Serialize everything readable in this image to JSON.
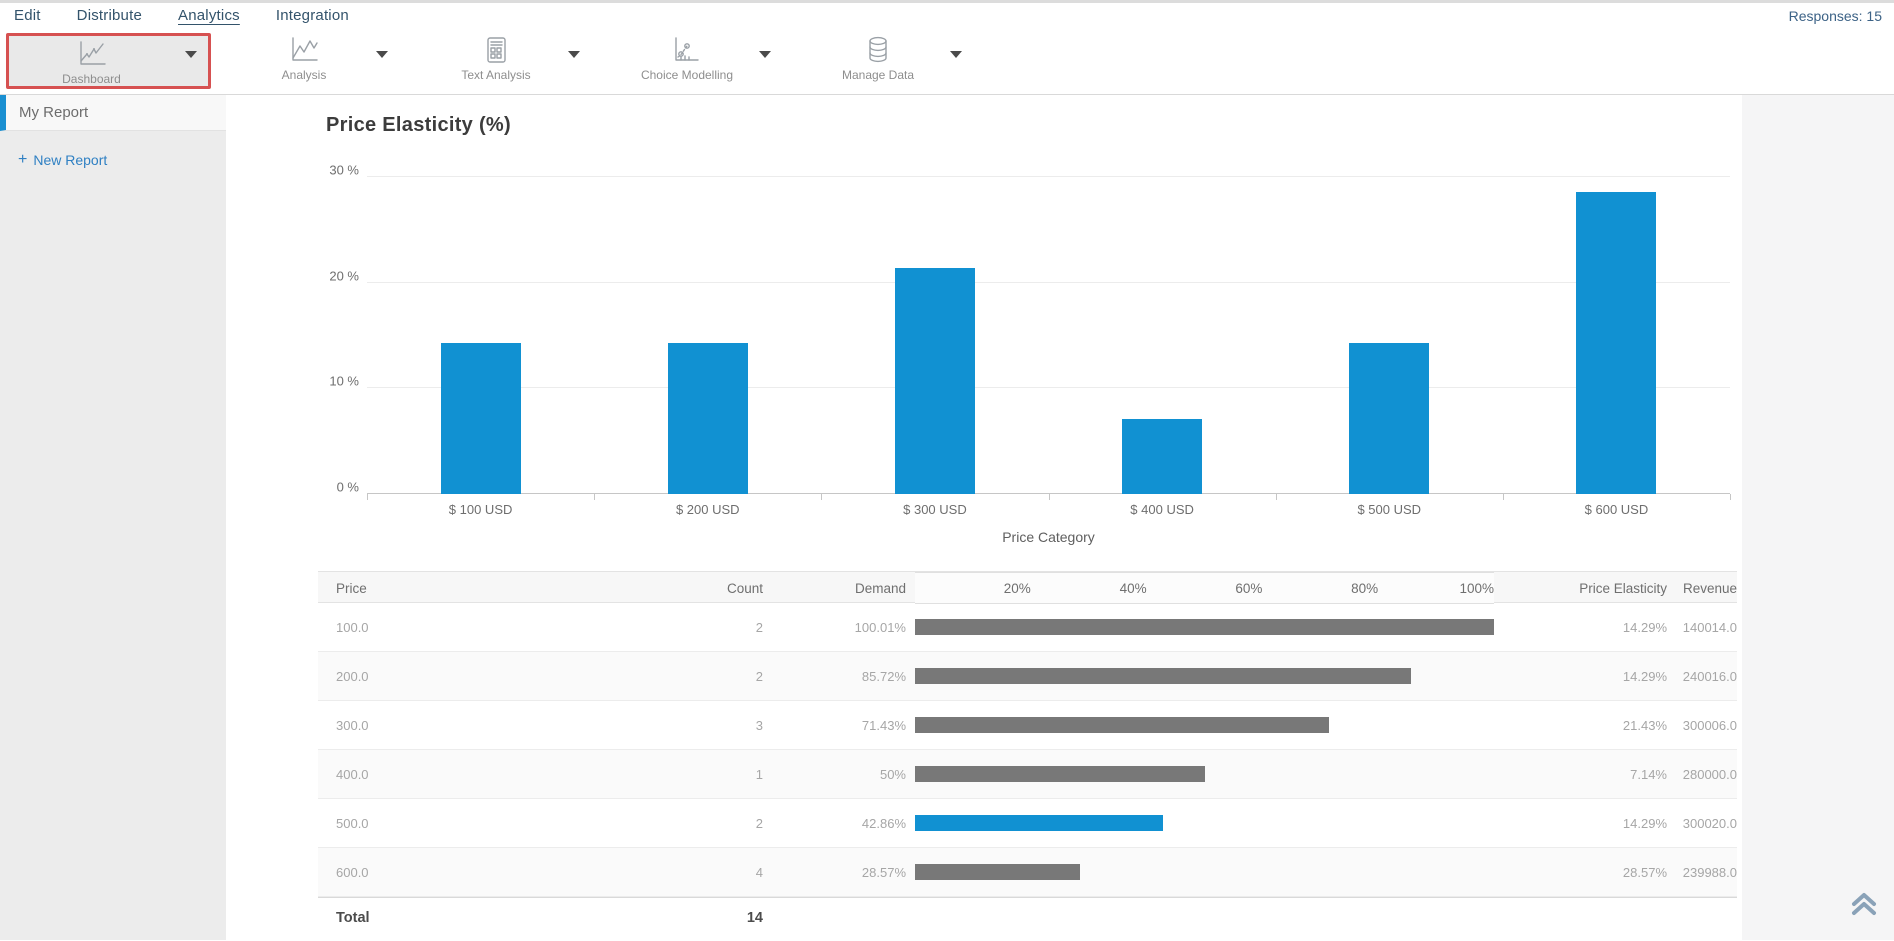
{
  "nav": {
    "items": [
      {
        "label": "Edit",
        "active": false
      },
      {
        "label": "Distribute",
        "active": false
      },
      {
        "label": "Analytics",
        "active": true
      },
      {
        "label": "Integration",
        "active": false
      }
    ],
    "responses": "Responses: 15"
  },
  "toolbar": {
    "items": [
      {
        "label": "Dashboard",
        "icon": "dashboard-chart-icon",
        "highlighted": true
      },
      {
        "label": "Analysis",
        "icon": "analysis-chart-icon",
        "highlighted": false
      },
      {
        "label": "Text Analysis",
        "icon": "text-analysis-icon",
        "highlighted": false
      },
      {
        "label": "Choice Modelling",
        "icon": "choice-modelling-icon",
        "highlighted": false
      },
      {
        "label": "Manage Data",
        "icon": "manage-data-icon",
        "highlighted": false
      }
    ]
  },
  "sidebar": {
    "report_name": "My Report",
    "new_report_plus": "+",
    "new_report_label": "New Report"
  },
  "chart_data": {
    "type": "bar",
    "title": "Price Elasticity (%)",
    "categories": [
      "$ 100 USD",
      "$ 200 USD",
      "$ 300 USD",
      "$ 400 USD",
      "$ 500 USD",
      "$ 600 USD"
    ],
    "values": [
      14.29,
      14.29,
      21.43,
      7.14,
      14.29,
      28.57
    ],
    "xlabel": "Price Category",
    "ylabel": "",
    "ylim": [
      0,
      30
    ],
    "yticks": [
      "0 %",
      "10 %",
      "20 %",
      "30 %"
    ],
    "grid": "horizontal",
    "legend": "none",
    "bar_color": "#1191d2"
  },
  "table": {
    "columns": [
      "Price",
      "Count",
      "Demand",
      "Price Elasticity",
      "Revenue"
    ],
    "scale_ticks": [
      "20%",
      "40%",
      "60%",
      "80%",
      "100%"
    ],
    "rows": [
      {
        "price": "100.0",
        "count": "2",
        "demand": "100.01%",
        "demand_pct": 100.01,
        "elasticity": "14.29%",
        "revenue": "140014.0",
        "bar": "gray"
      },
      {
        "price": "200.0",
        "count": "2",
        "demand": "85.72%",
        "demand_pct": 85.72,
        "elasticity": "14.29%",
        "revenue": "240016.0",
        "bar": "gray"
      },
      {
        "price": "300.0",
        "count": "3",
        "demand": "71.43%",
        "demand_pct": 71.43,
        "elasticity": "21.43%",
        "revenue": "300006.0",
        "bar": "gray"
      },
      {
        "price": "400.0",
        "count": "1",
        "demand": "50%",
        "demand_pct": 50.0,
        "elasticity": "7.14%",
        "revenue": "280000.0",
        "bar": "gray"
      },
      {
        "price": "500.0",
        "count": "2",
        "demand": "42.86%",
        "demand_pct": 42.86,
        "elasticity": "14.29%",
        "revenue": "300020.0",
        "bar": "blue"
      },
      {
        "price": "600.0",
        "count": "4",
        "demand": "28.57%",
        "demand_pct": 28.57,
        "elasticity": "28.57%",
        "revenue": "239988.0",
        "bar": "gray"
      }
    ],
    "total_label": "Total",
    "total_count": "14"
  },
  "colors": {
    "accent_blue": "#1191d2",
    "link_blue": "#2f80c3",
    "highlight_red": "#d65151",
    "bar_gray": "#787878",
    "nav_text": "#33536b"
  }
}
